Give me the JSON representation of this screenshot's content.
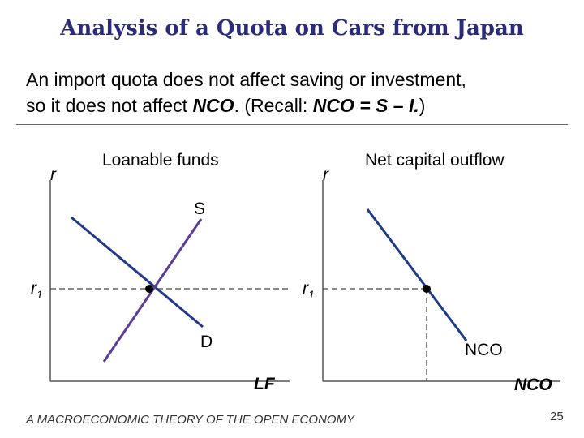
{
  "slide": {
    "title": "Analysis of a Quota on Cars from Japan",
    "text_line1": "An import quota does not affect saving or investment,",
    "text_line2_prefix": "so it does not affect ",
    "text_line2_nco": "NCO",
    "text_line2_mid": ".  (Recall:  ",
    "text_line2_formula": "NCO = S – I.",
    "text_line2_suffix": ")",
    "footer": "A MACROECONOMIC THEORY OF THE OPEN ECONOMY",
    "page_number": "25"
  },
  "left_graph": {
    "title": "Loanable funds",
    "y_label": "r",
    "x_label": "LF",
    "supply_label": "S",
    "demand_label": "D",
    "rate_label": "r",
    "rate_subscript": "1"
  },
  "right_graph": {
    "title": "Net capital outflow",
    "y_label": "r",
    "x_label": "NCO",
    "curve_label": "NCO",
    "rate_label": "r",
    "rate_subscript": "1"
  },
  "colors": {
    "title": "#2b2b7a",
    "demand_curve": "#1f3a8a",
    "supply_curve": "#5a3d99",
    "nco_curve": "#1f3a8a"
  }
}
